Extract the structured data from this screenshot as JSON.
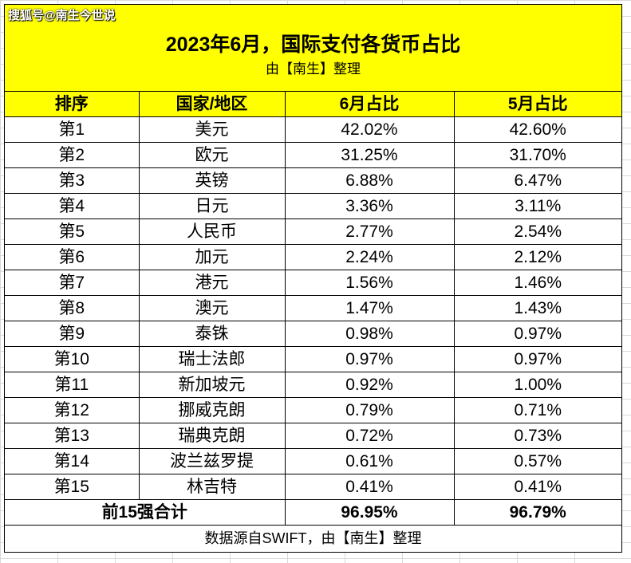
{
  "watermark": "搜狐号@南生今世说",
  "title": "2023年6月，国际支付各货币占比",
  "subtitle": "由【南生】整理",
  "headers": [
    "排序",
    "国家/地区",
    "6月占比",
    "5月占比"
  ],
  "rows": [
    [
      "第1",
      "美元",
      "42.02%",
      "42.60%"
    ],
    [
      "第2",
      "欧元",
      "31.25%",
      "31.70%"
    ],
    [
      "第3",
      "英镑",
      "6.88%",
      "6.47%"
    ],
    [
      "第4",
      "日元",
      "3.36%",
      "3.11%"
    ],
    [
      "第5",
      "人民币",
      "2.77%",
      "2.54%"
    ],
    [
      "第6",
      "加元",
      "2.24%",
      "2.12%"
    ],
    [
      "第7",
      "港元",
      "1.56%",
      "1.46%"
    ],
    [
      "第8",
      "澳元",
      "1.47%",
      "1.43%"
    ],
    [
      "第9",
      "泰铢",
      "0.98%",
      "0.97%"
    ],
    [
      "第10",
      "瑞士法郎",
      "0.97%",
      "0.97%"
    ],
    [
      "第11",
      "新加坡元",
      "0.92%",
      "1.00%"
    ],
    [
      "第12",
      "挪威克朗",
      "0.79%",
      "0.71%"
    ],
    [
      "第13",
      "瑞典克朗",
      "0.72%",
      "0.73%"
    ],
    [
      "第14",
      "波兰兹罗提",
      "0.61%",
      "0.57%"
    ],
    [
      "第15",
      "林吉特",
      "0.41%",
      "0.41%"
    ]
  ],
  "total": {
    "label": "前15强合计",
    "june": "96.95%",
    "may": "96.79%"
  },
  "footer": "数据源自SWIFT，由【南生】整理",
  "colors": {
    "highlight": "#ffff00",
    "grid": "#d9d9d9"
  }
}
